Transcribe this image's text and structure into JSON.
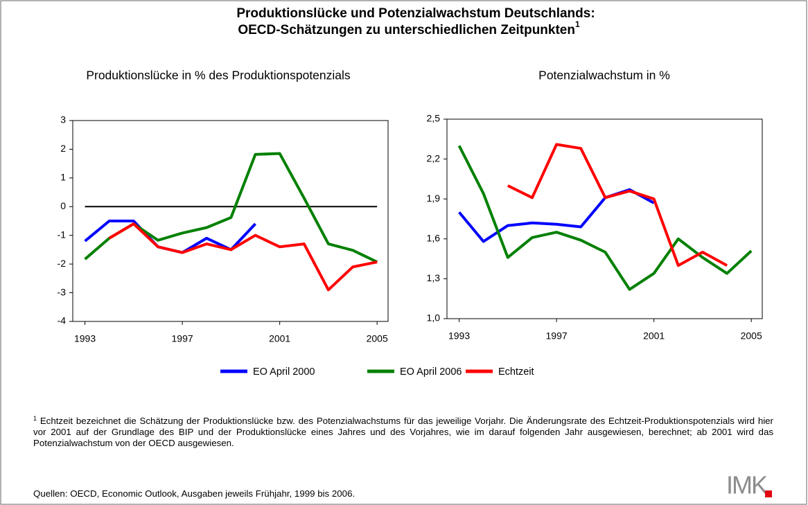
{
  "title": {
    "line1": "Produktionslücke und Potenzialwachstum Deutschlands:",
    "line2": "OECD-Schätzungen zu unterschiedlichen Zeitpunkten",
    "note": "1"
  },
  "chart_data": [
    {
      "type": "line",
      "title": "Produktionslücke in % des Produktionspotenzials",
      "x": [
        1993,
        1994,
        1995,
        1996,
        1997,
        1998,
        1999,
        2000,
        2001,
        2002,
        2003,
        2004,
        2005
      ],
      "xlim": [
        1992.5,
        2005.45
      ],
      "xticks": [
        1993,
        1997,
        2001,
        2005
      ],
      "ylim": [
        -4,
        3
      ],
      "yticks": [
        -4,
        -3,
        -2,
        -1,
        0,
        1,
        2,
        3
      ],
      "zero_line": true,
      "series": [
        {
          "name": "EO April 2000",
          "color": "#0000ff",
          "values": [
            -1.2,
            -0.5,
            -0.5,
            -1.4,
            -1.6,
            -1.1,
            -1.5,
            -0.6,
            null,
            null,
            null,
            null,
            null
          ]
        },
        {
          "name": "EO April 2006",
          "color": "#008000",
          "values": [
            -1.83,
            -1.1,
            -0.6,
            -1.17,
            -0.92,
            -0.73,
            -0.38,
            1.82,
            1.85,
            0.3,
            -1.3,
            -1.52,
            -1.93
          ]
        },
        {
          "name": "Echtzeit",
          "color": "#ff0000",
          "values": [
            null,
            -1.1,
            -0.6,
            -1.4,
            -1.6,
            -1.3,
            -1.5,
            -1.0,
            -1.4,
            -1.3,
            -2.9,
            -2.1,
            -1.93
          ]
        }
      ]
    },
    {
      "type": "line",
      "title": "Potenzialwachstum in %",
      "x": [
        1993,
        1994,
        1995,
        1996,
        1997,
        1998,
        1999,
        2000,
        2001,
        2002,
        2003,
        2004,
        2005
      ],
      "xlim": [
        1992.5,
        2005.45
      ],
      "xticks": [
        1993,
        1997,
        2001,
        2005
      ],
      "ylim": [
        1.0,
        2.5
      ],
      "yticks": [
        {
          "value": 1.0,
          "label": "1,0"
        },
        {
          "value": 1.3,
          "label": "1,3"
        },
        {
          "value": 1.6,
          "label": "1,6"
        },
        {
          "value": 1.9,
          "label": "1,9"
        },
        {
          "value": 2.2,
          "label": "2,2"
        },
        {
          "value": 2.5,
          "label": "2,5"
        }
      ],
      "zero_line": false,
      "series": [
        {
          "color": "#0000ff",
          "values": [
            1.8,
            1.58,
            1.7,
            1.72,
            1.71,
            1.69,
            1.91,
            1.97,
            1.87,
            null,
            null,
            null,
            null
          ]
        },
        {
          "color": "#008000",
          "values": [
            2.3,
            1.94,
            1.46,
            1.61,
            1.65,
            1.59,
            1.5,
            1.22,
            1.34,
            1.6,
            1.46,
            1.34,
            1.51
          ]
        },
        {
          "color": "#ff0000",
          "values": [
            null,
            null,
            2.0,
            1.91,
            2.31,
            2.28,
            1.91,
            1.96,
            1.9,
            1.4,
            1.5,
            1.4,
            null
          ]
        }
      ]
    }
  ],
  "footnote": {
    "mark": "1",
    "text": "Echtzeit bezeichnet die Schätzung der Produktionslücke bzw. des Potenzialwachstums für das jeweilige Vorjahr. Die Änderungsrate des Echtzeit-Produktionspotenzials wird hier vor 2001 auf der Grundlage des BIP und der Produktionslücke eines Jahres und des Vorjahres, wie im darauf folgenden Jahr ausgewiesen, berechnet; ab 2001 wird das Potenzialwachstum von der OECD ausgewiesen."
  },
  "source": "Quellen: OECD, Economic Outlook, Ausgaben jeweils Frühjahr, 1999 bis 2006.",
  "logo": "IMK"
}
